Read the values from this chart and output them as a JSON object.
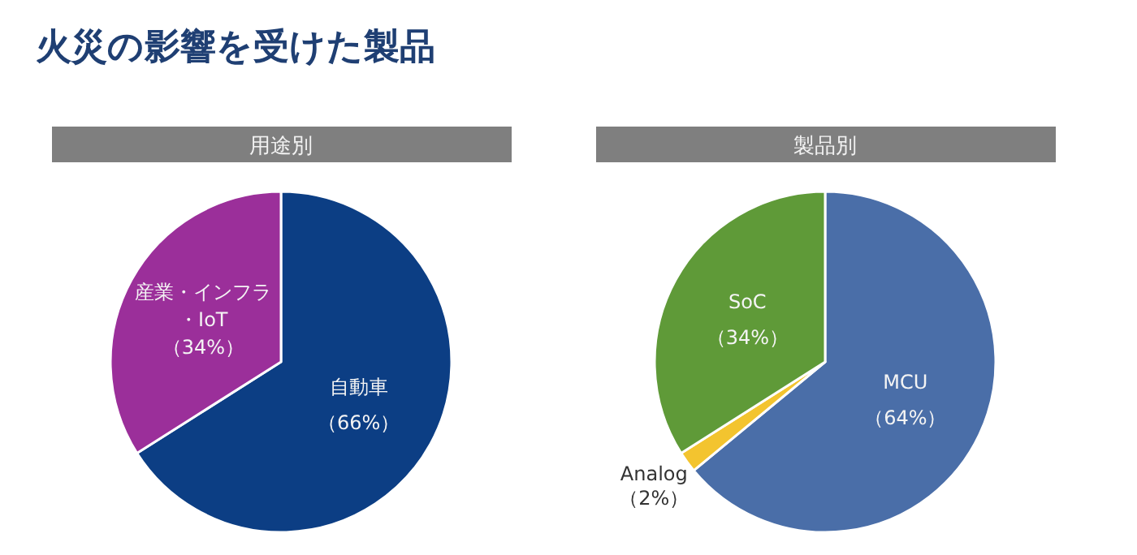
{
  "chart_data": [
    {
      "type": "pie",
      "title": "火災の影響を受けた製品",
      "subtitle": "用途別",
      "categories": [
        "自動車",
        "産業・インフラ・IoT"
      ],
      "values": [
        66,
        34
      ],
      "colors": [
        "#0c3e84",
        "#9b2f9a"
      ],
      "value_labels": [
        "（66%）",
        "（34%）"
      ]
    },
    {
      "type": "pie",
      "subtitle": "製品別",
      "categories": [
        "MCU",
        "Analog",
        "SoC"
      ],
      "values": [
        64,
        2,
        34
      ],
      "colors": [
        "#4a6ea8",
        "#f3c42f",
        "#5f9a38"
      ],
      "value_labels": [
        "（64%）",
        "（2%）",
        "（34%）"
      ]
    }
  ]
}
